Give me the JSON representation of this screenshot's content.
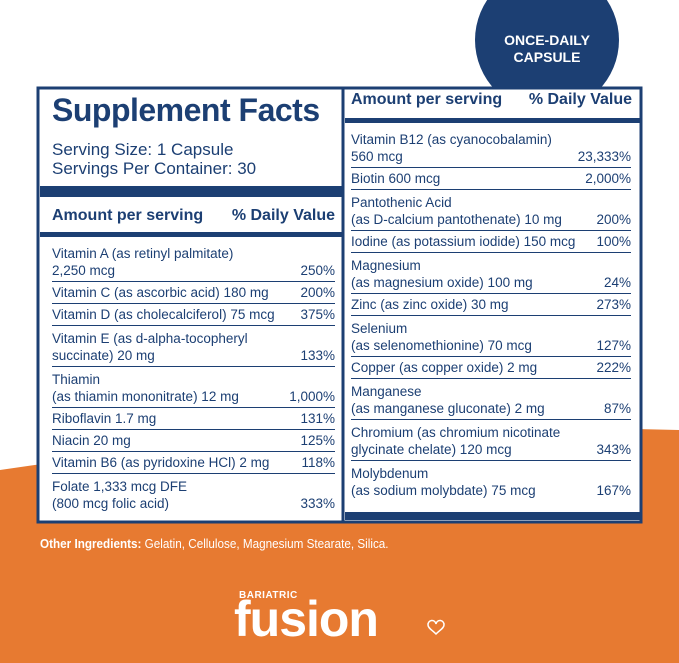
{
  "badge": [
    "ONCE-DAILY",
    "CAPSULE"
  ],
  "title": "Supplement Facts",
  "serving_size": "Serving Size: 1 Capsule",
  "servings_per_container": "Servings Per Container: 30",
  "left_header": {
    "amount": "Amount per serving",
    "daily_value": "% Daily Value"
  },
  "right_header": {
    "amount": "Amount per serving",
    "daily_value": "% Daily Value"
  },
  "left_rows": [
    {
      "name": [
        "Vitamin A (as retinyl palmitate)",
        "2,250 mcg"
      ],
      "dv": "250%"
    },
    {
      "name": [
        "Vitamin C (as ascorbic acid) 180 mg"
      ],
      "dv": "200%"
    },
    {
      "name": [
        "Vitamin D (as cholecalciferol) 75 mcg"
      ],
      "dv": "375%"
    },
    {
      "name": [
        "Vitamin E (as d-alpha-tocopheryl",
        "succinate) 20 mg"
      ],
      "dv": "133%"
    },
    {
      "name": [
        "Thiamin",
        "(as thiamin mononitrate) 12 mg"
      ],
      "dv": "1,000%"
    },
    {
      "name": [
        "Riboflavin 1.7 mg"
      ],
      "dv": "131%"
    },
    {
      "name": [
        "Niacin 20 mg"
      ],
      "dv": "125%"
    },
    {
      "name": [
        "Vitamin B6 (as pyridoxine HCl) 2 mg"
      ],
      "dv": "118%"
    },
    {
      "name": [
        "Folate 1,333 mcg DFE",
        "(800 mcg folic acid)"
      ],
      "dv": "333%"
    }
  ],
  "right_rows": [
    {
      "name": [
        "Vitamin B12 (as cyanocobalamin)",
        "560 mcg"
      ],
      "dv": "23,333%"
    },
    {
      "name": [
        "Biotin 600 mcg"
      ],
      "dv": "2,000%"
    },
    {
      "name": [
        "Pantothenic Acid",
        "(as D-calcium pantothenate) 10 mg"
      ],
      "dv": "200%"
    },
    {
      "name": [
        "Iodine (as potassium iodide) 150 mcg"
      ],
      "dv": "100%"
    },
    {
      "name": [
        "Magnesium",
        "(as magnesium oxide) 100 mg"
      ],
      "dv": "24%"
    },
    {
      "name": [
        "Zinc (as zinc oxide) 30 mg"
      ],
      "dv": "273%"
    },
    {
      "name": [
        "Selenium",
        "(as selenomethionine) 70 mcg"
      ],
      "dv": "127%"
    },
    {
      "name": [
        "Copper (as copper oxide) 2 mg"
      ],
      "dv": "222%"
    },
    {
      "name": [
        "Manganese",
        "(as manganese gluconate) 2 mg"
      ],
      "dv": "87%"
    },
    {
      "name": [
        "Chromium (as chromium nicotinate",
        "glycinate chelate) 120 mcg"
      ],
      "dv": "343%"
    },
    {
      "name": [
        "Molybdenum",
        "(as sodium molybdate) 75 mcg"
      ],
      "dv": "167%"
    }
  ],
  "other_ingredients": {
    "label": "Other Ingredients:",
    "text": "Gelatin, Cellulose, Magnesium Stearate, Silica."
  },
  "brand": {
    "small": "BARIATRIC",
    "name": "fusion"
  }
}
